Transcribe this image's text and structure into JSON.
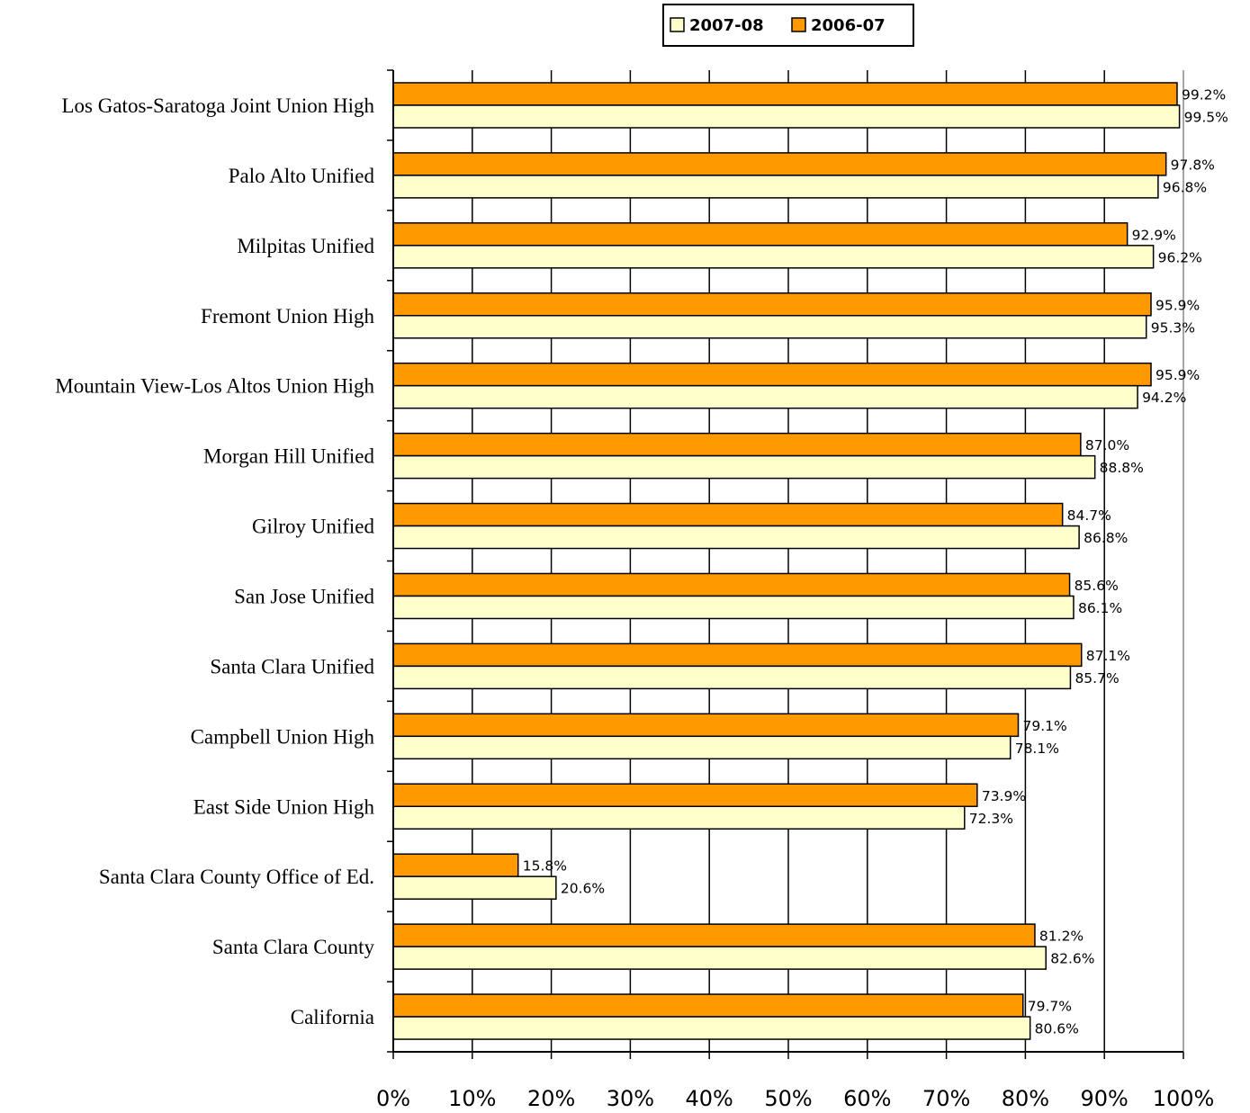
{
  "chart_data": {
    "type": "bar",
    "orientation": "horizontal",
    "title": "",
    "xlabel": "",
    "ylabel": "",
    "xlim": [
      0,
      100
    ],
    "x_ticks": [
      "0%",
      "10%",
      "20%",
      "30%",
      "40%",
      "50%",
      "60%",
      "70%",
      "80%",
      "90%",
      "100%"
    ],
    "grid": "vertical",
    "legend": {
      "placement": "top-center"
    },
    "categories": [
      "Los Gatos-Saratoga Joint Union High",
      "Palo Alto Unified",
      "Milpitas Unified",
      "Fremont Union High",
      "Mountain View-Los Altos Union High",
      "Morgan Hill Unified",
      "Gilroy Unified",
      "San Jose Unified",
      "Santa Clara Unified",
      "Campbell Union High",
      "East Side Union High",
      "Santa Clara County Office of Ed.",
      "Santa Clara County",
      "California"
    ],
    "series": [
      {
        "name": "2007-08",
        "color": "#FFFFCC",
        "values": [
          99.5,
          96.8,
          96.2,
          95.3,
          94.2,
          88.8,
          86.8,
          86.1,
          85.7,
          78.1,
          72.3,
          20.6,
          82.6,
          80.6
        ],
        "labels": [
          "99.5%",
          "96.8%",
          "96.2%",
          "95.3%",
          "94.2%",
          "88.8%",
          "86.8%",
          "86.1%",
          "85.7%",
          "78.1%",
          "72.3%",
          "20.6%",
          "82.6%",
          "80.6%"
        ]
      },
      {
        "name": "2006-07",
        "color": "#FF9900",
        "values": [
          99.2,
          97.8,
          92.9,
          95.9,
          95.9,
          87.0,
          84.7,
          85.6,
          87.1,
          79.1,
          73.9,
          15.8,
          81.2,
          79.7
        ],
        "labels": [
          "99.2%",
          "97.8%",
          "92.9%",
          "95.9%",
          "95.9%",
          "87.0%",
          "84.7%",
          "85.6%",
          "87.1%",
          "79.1%",
          "73.9%",
          "15.8%",
          "81.2%",
          "79.7%"
        ]
      }
    ]
  }
}
